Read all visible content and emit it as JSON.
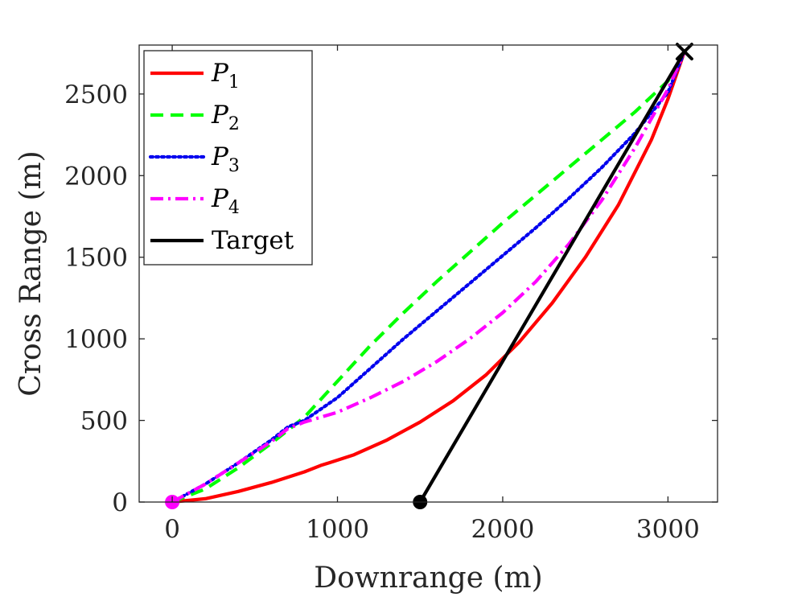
{
  "chart_data": {
    "type": "line",
    "title": "",
    "xlabel": "Downrange (m)",
    "ylabel": "Cross Range (m)",
    "xlim": [
      -200,
      3300
    ],
    "ylim": [
      0,
      2800
    ],
    "xticks": [
      0,
      1000,
      2000,
      3000
    ],
    "yticks": [
      0,
      500,
      1000,
      1500,
      2000,
      2500
    ],
    "xtick_labels": [
      "0",
      "1000",
      "2000",
      "3000"
    ],
    "ytick_labels": [
      "0",
      "500",
      "1000",
      "1500",
      "2000",
      "2500"
    ],
    "legend_position": "top-left",
    "series": [
      {
        "name": "P",
        "subscript": "1",
        "color": "#ff0000",
        "style": "solid",
        "x": [
          0,
          200,
          400,
          600,
          800,
          900,
          950,
          1100,
          1300,
          1500,
          1700,
          1900,
          2100,
          2300,
          2500,
          2700,
          2900,
          3000,
          3100
        ],
        "y": [
          0,
          20,
          65,
          120,
          185,
          225,
          240,
          290,
          380,
          490,
          620,
          780,
          980,
          1220,
          1500,
          1820,
          2220,
          2470,
          2760
        ]
      },
      {
        "name": "P",
        "subscript": "2",
        "color": "#00ff00",
        "style": "dashed",
        "x": [
          0,
          200,
          400,
          600,
          800,
          1000,
          1200,
          1400,
          1600,
          1800,
          2000,
          2200,
          2400,
          2600,
          2800,
          3000,
          3100
        ],
        "y": [
          0,
          80,
          210,
          360,
          520,
          740,
          960,
          1160,
          1350,
          1530,
          1710,
          1880,
          2050,
          2220,
          2390,
          2580,
          2760
        ]
      },
      {
        "name": "P",
        "subscript": "3",
        "color": "#0000ee",
        "style": "dotted",
        "x": [
          0,
          200,
          400,
          600,
          700,
          800,
          1000,
          1200,
          1400,
          1600,
          1800,
          2000,
          2200,
          2400,
          2600,
          2800,
          3000,
          3100
        ],
        "y": [
          0,
          110,
          240,
          380,
          460,
          500,
          640,
          820,
          1000,
          1170,
          1340,
          1510,
          1680,
          1860,
          2050,
          2260,
          2510,
          2760
        ]
      },
      {
        "name": "P",
        "subscript": "4",
        "color": "#ff00ff",
        "style": "dashdot",
        "x": [
          0,
          200,
          400,
          600,
          700,
          800,
          900,
          1000,
          1200,
          1400,
          1600,
          1800,
          2000,
          2200,
          2400,
          2600,
          2800,
          3000,
          3100
        ],
        "y": [
          0,
          110,
          240,
          370,
          450,
          490,
          520,
          550,
          640,
          740,
          860,
          1000,
          1160,
          1350,
          1580,
          1850,
          2170,
          2530,
          2760
        ]
      },
      {
        "name": "Target",
        "subscript": "",
        "color": "#000000",
        "style": "solid",
        "x": [
          1500,
          3100
        ],
        "y": [
          0,
          2760
        ]
      }
    ],
    "markers": [
      {
        "name": "start-marker",
        "shape": "circle",
        "color": "#ff00ff",
        "x": 0,
        "y": 0
      },
      {
        "name": "target-start-marker",
        "shape": "circle",
        "color": "#000000",
        "x": 1500,
        "y": 0
      },
      {
        "name": "end-marker",
        "shape": "cross",
        "color": "#000000",
        "x": 3100,
        "y": 2760
      }
    ]
  }
}
